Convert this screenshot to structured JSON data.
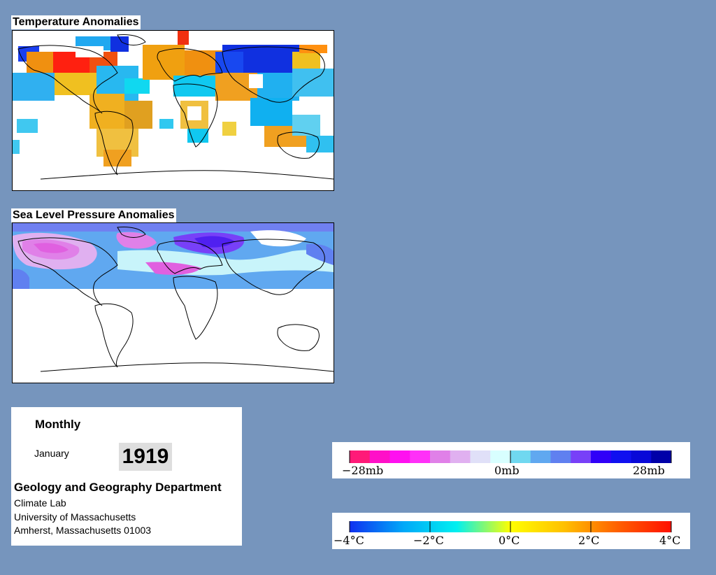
{
  "panels": {
    "temperature": {
      "title": "Temperature Anomalies"
    },
    "pressure": {
      "title": "Sea Level Pressure Anomalies"
    }
  },
  "info": {
    "frequency": "Monthly",
    "month": "January",
    "year": "1919",
    "department": "Geology and Geography Department",
    "lab": "Climate Lab",
    "university": "University of Massachusetts",
    "address": "Amherst, Massachusetts 01003"
  },
  "legends": {
    "pressure": {
      "min_label": "−28mb",
      "mid_label": "0mb",
      "max_label": "28mb",
      "colors": [
        "#ff1a78",
        "#ff10c8",
        "#ff10f0",
        "#ff30f8",
        "#e080e8",
        "#e0b0f0",
        "#e0e0f8",
        "#d8ffff",
        "#70d8f0",
        "#60a8f0",
        "#6080f0",
        "#7840f8",
        "#3000f8",
        "#1010f0",
        "#0808d8",
        "#0000a8"
      ]
    },
    "temperature": {
      "labels": [
        "−4°C",
        "−2°C",
        "0°C",
        "2°C",
        "4°C"
      ],
      "gradient": [
        "#1030f0",
        "#00a8f8",
        "#00f0f0",
        "#ffff00",
        "#ffc000",
        "#ff6000",
        "#ff1000"
      ]
    }
  },
  "colors": {
    "background": "#7695bd",
    "panel": "#ffffff",
    "coastline": "#000000"
  }
}
